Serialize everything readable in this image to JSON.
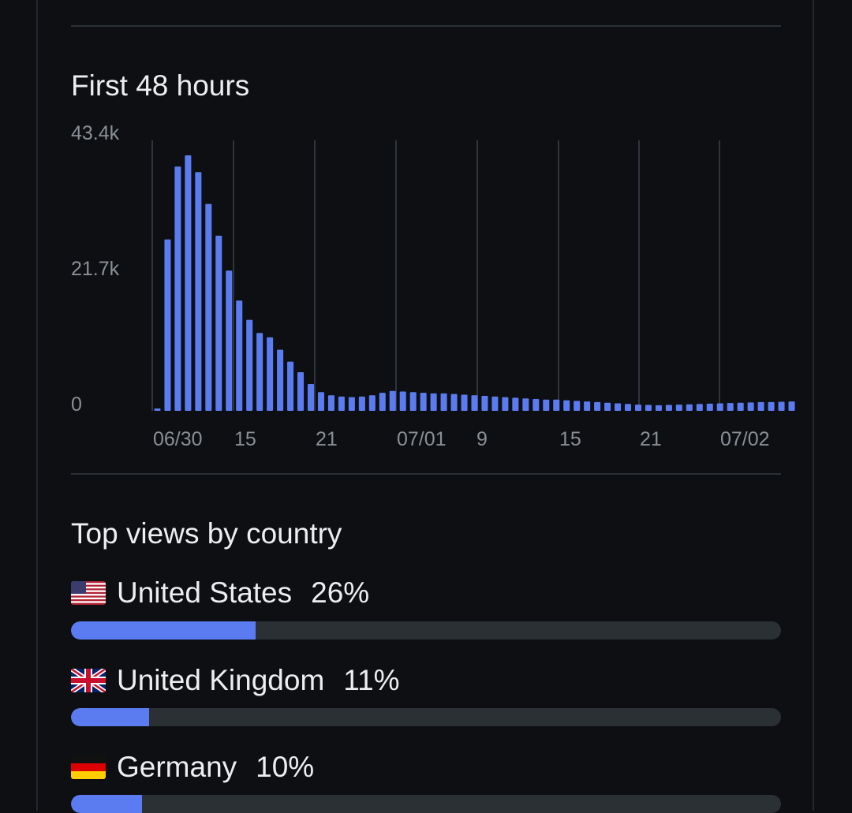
{
  "hours_section": {
    "title": "First 48 hours"
  },
  "chart_data": {
    "type": "bar",
    "title": "First 48 hours",
    "ylim": [
      0,
      43400
    ],
    "y_ticks": [
      "43.4k",
      "21.7k",
      "0"
    ],
    "x_ticks": [
      "06/30",
      "15",
      "21",
      "07/01",
      "9",
      "15",
      "21",
      "07/02"
    ],
    "grid": "vertical",
    "values": [
      200,
      27500,
      39200,
      41000,
      38300,
      33200,
      28100,
      22500,
      17700,
      14600,
      12500,
      11800,
      9800,
      7900,
      6200,
      4300,
      3000,
      2500,
      2300,
      2200,
      2300,
      2500,
      2900,
      3200,
      3100,
      3000,
      2900,
      2800,
      2800,
      2700,
      2600,
      2500,
      2400,
      2300,
      2200,
      2100,
      2000,
      1900,
      1800,
      1800,
      1700,
      1600,
      1500,
      1400,
      1300,
      1200,
      1100,
      1000,
      950,
      900,
      950,
      1000,
      1050,
      1100,
      1150,
      1200,
      1250,
      1300,
      1350,
      1400,
      1400,
      1450,
      1500
    ]
  },
  "countries_section": {
    "title": "Top views by country",
    "items": [
      {
        "flag": "us-flag-icon",
        "name": "United States",
        "pct": "26%",
        "value": 0.26
      },
      {
        "flag": "uk-flag-icon",
        "name": "United Kingdom",
        "pct": "11%",
        "value": 0.11
      },
      {
        "flag": "de-flag-icon",
        "name": "Germany",
        "pct": "10%",
        "value": 0.1
      }
    ]
  },
  "colors": {
    "bar": "#5b7cf0",
    "background": "#0d0f12",
    "track": "#2b3035"
  }
}
